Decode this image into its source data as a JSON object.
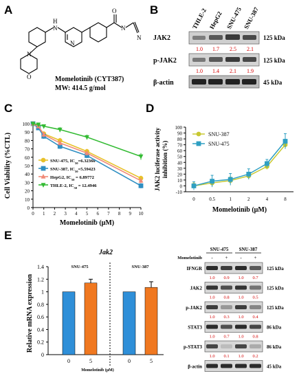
{
  "panels": {
    "A": "A",
    "B": "B",
    "C": "C",
    "D": "D",
    "E": "E"
  },
  "panel_a": {
    "drug_name": "Momelotinib (CYT387)",
    "mw": "MW: 414.5 g/mol",
    "atoms": {
      "h": "H",
      "n1": "N",
      "n2": "N",
      "n3": "N",
      "n4": "N",
      "o1": "O",
      "o2": "O",
      "n_nitrile": "N"
    }
  },
  "panel_b": {
    "lanes": [
      "THLE-2",
      "HepG2",
      "SNU-475",
      "SNU-387"
    ],
    "rows": [
      {
        "label": "JAK2",
        "kda": "125 kDa",
        "values": [
          "1.0",
          "1.7",
          "2.5",
          "2.1"
        ]
      },
      {
        "label": "p-JAK2",
        "kda": "125 kDa",
        "values": [
          "1.0",
          "1.4",
          "2.1",
          "1.9"
        ]
      },
      {
        "label": "β-actin",
        "kda": "45 kDa",
        "values": []
      }
    ]
  },
  "panel_e_blot": {
    "groups": [
      "SNU-475",
      "SNU-387"
    ],
    "treatment_label": "Momelotinib",
    "treatment_signs": [
      "-",
      "+",
      "-",
      "+"
    ],
    "rows": [
      {
        "label": "IFNGR",
        "kda": "125 kDa",
        "values": [
          "1.0",
          "0.9",
          "1.0",
          "0.7"
        ]
      },
      {
        "label": "JAK2",
        "kda": "125 kDa",
        "values": [
          "1.0",
          "0.8",
          "1.0",
          "0.5"
        ]
      },
      {
        "label": "p-JAK2",
        "kda": "125 kDa",
        "values": [
          "1.0",
          "0.3",
          "1.0",
          "0.4"
        ]
      },
      {
        "label": "STAT3",
        "kda": "86 kDa",
        "values": [
          "1.0",
          "0.7",
          "1.0",
          "0.8"
        ]
      },
      {
        "label": "p-STAT3",
        "kda": "86 kDa",
        "values": [
          "1.0",
          "0.1",
          "1.0",
          "0.2"
        ]
      },
      {
        "label": "β-actin",
        "kda": "45 kDa",
        "values": []
      }
    ]
  },
  "chart_data": [
    {
      "type": "line",
      "panel": "C",
      "xlabel": "Momelotinib (μM)",
      "ylabel": "Cell Viability (%CTL)",
      "xlim": [
        0,
        10
      ],
      "ylim": [
        0,
        100
      ],
      "xticks": [
        0,
        1,
        2,
        3,
        4,
        5,
        6,
        7,
        8,
        9,
        10
      ],
      "yticks": [
        0,
        10,
        20,
        30,
        40,
        50,
        60,
        70,
        80,
        90,
        100
      ],
      "legend_position": "bottom-left",
      "series": [
        {
          "name": "SNU-475, IC50=6.32360",
          "color": "#e8c12a",
          "marker": "circle",
          "x": [
            0,
            0.5,
            1,
            2.5,
            5,
            10
          ],
          "y": [
            100,
            96,
            88,
            80,
            67,
            35
          ],
          "err": [
            1.5,
            2,
            3,
            3,
            3,
            3
          ]
        },
        {
          "name": "SNU-387, IC50=5.59423",
          "color": "#2f8fc2",
          "marker": "square",
          "x": [
            0,
            0.5,
            1,
            2.5,
            5,
            10
          ],
          "y": [
            100,
            95,
            85,
            73,
            62,
            26
          ],
          "err": [
            1.5,
            2,
            3,
            3,
            3,
            3
          ]
        },
        {
          "name": "HepG2, IC50 = 6.89772",
          "color": "#f08a78",
          "marker": "triangle",
          "x": [
            0,
            0.5,
            1,
            2.5,
            5,
            10
          ],
          "y": [
            100,
            97,
            87,
            77,
            65,
            32
          ],
          "err": [
            1.5,
            2,
            3,
            3,
            3,
            3
          ]
        },
        {
          "name": "THLE-2, IC50 = 12.4946",
          "color": "#33bb33",
          "marker": "triangle-down",
          "x": [
            0,
            0.5,
            1,
            2.5,
            5,
            10
          ],
          "y": [
            100,
            99,
            97,
            93,
            84,
            61
          ],
          "err": [
            1,
            1.5,
            2,
            3,
            3,
            4
          ]
        }
      ]
    },
    {
      "type": "line",
      "panel": "D",
      "xlabel": "Momelotinib (μM)",
      "ylabel": "JAK2 luciferase activity inhibition (%)",
      "categories": [
        "0",
        "0.5",
        "1",
        "2",
        "4",
        "8"
      ],
      "ylim": [
        -10,
        100
      ],
      "yticks": [
        -10,
        0,
        10,
        20,
        30,
        40,
        50,
        60,
        70,
        80,
        90,
        100
      ],
      "legend_position": "top-left",
      "series": [
        {
          "name": "SNU-387",
          "color": "#c8c832",
          "marker": "circle",
          "values": [
            0,
            5,
            9,
            17,
            33,
            70
          ],
          "err": [
            5,
            5,
            6,
            5,
            5,
            6
          ]
        },
        {
          "name": "SNU-475",
          "color": "#2f9fc2",
          "marker": "square",
          "values": [
            0,
            8,
            11,
            20,
            38,
            76
          ],
          "err": [
            7,
            10,
            10,
            9,
            7,
            13
          ]
        }
      ]
    },
    {
      "type": "bar",
      "panel": "E",
      "title": "Jak2",
      "ylabel": "Relative mRNA expression",
      "xlabel": "Momelotinib (μM)",
      "ylim": [
        0,
        1.4
      ],
      "yticks": [
        "0",
        "0.2",
        "0.4",
        "0.6",
        "0.8",
        "1",
        "1.2",
        "1.4"
      ],
      "groups": [
        {
          "name": "SNU-475",
          "categories": [
            "0",
            "5"
          ],
          "values": [
            1.0,
            1.14
          ],
          "err": [
            0,
            0.06
          ]
        },
        {
          "name": "SNU-387",
          "categories": [
            "0",
            "5"
          ],
          "values": [
            1.0,
            1.07
          ],
          "err": [
            0,
            0.09
          ]
        }
      ],
      "colors": [
        "#2f8fd8",
        "#f07820"
      ]
    }
  ]
}
